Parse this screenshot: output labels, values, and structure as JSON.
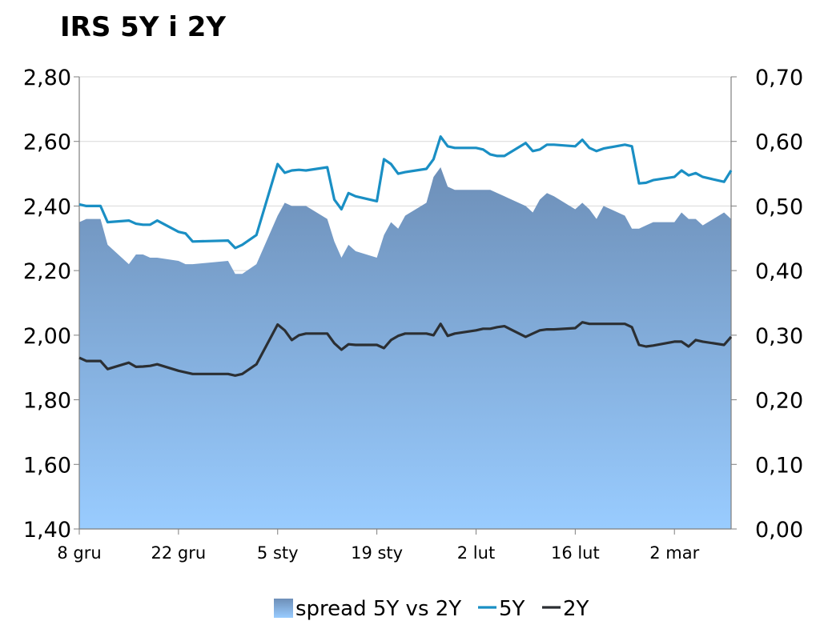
{
  "chart_data": {
    "type": "line",
    "title": "IRS 5Y i 2Y",
    "x_tick_labels": [
      "8 gru",
      "22 gru",
      "5 sty",
      "19 sty",
      "2 lut",
      "16 lut",
      "2 mar"
    ],
    "x": [
      "2008-12-08",
      "2008-12-09",
      "2008-12-10",
      "2008-12-11",
      "2008-12-12",
      "2008-12-15",
      "2008-12-16",
      "2008-12-17",
      "2008-12-18",
      "2008-12-19",
      "2008-12-22",
      "2008-12-23",
      "2008-12-24",
      "2008-12-29",
      "2008-12-30",
      "2008-12-31",
      "2009-01-02",
      "2009-01-05",
      "2009-01-06",
      "2009-01-07",
      "2009-01-08",
      "2009-01-09",
      "2009-01-12",
      "2009-01-13",
      "2009-01-14",
      "2009-01-15",
      "2009-01-16",
      "2009-01-19",
      "2009-01-20",
      "2009-01-21",
      "2009-01-22",
      "2009-01-23",
      "2009-01-26",
      "2009-01-27",
      "2009-01-28",
      "2009-01-29",
      "2009-01-30",
      "2009-02-02",
      "2009-02-03",
      "2009-02-04",
      "2009-02-05",
      "2009-02-06",
      "2009-02-09",
      "2009-02-10",
      "2009-02-11",
      "2009-02-12",
      "2009-02-13",
      "2009-02-16",
      "2009-02-17",
      "2009-02-18",
      "2009-02-19",
      "2009-02-20",
      "2009-02-23",
      "2009-02-24",
      "2009-02-25",
      "2009-02-26",
      "2009-02-27",
      "2009-03-02",
      "2009-03-03",
      "2009-03-04",
      "2009-03-05",
      "2009-03-06",
      "2009-03-09",
      "2009-03-10"
    ],
    "series": [
      {
        "name": "spread 5Y vs 2Y",
        "axis": "right",
        "type": "area",
        "values": [
          0.475,
          0.48,
          0.48,
          0.48,
          0.44,
          0.41,
          0.425,
          0.425,
          0.42,
          0.42,
          0.415,
          0.41,
          0.41,
          0.415,
          0.395,
          0.395,
          0.41,
          0.485,
          0.505,
          0.5,
          0.5,
          0.5,
          0.48,
          0.445,
          0.42,
          0.44,
          0.43,
          0.42,
          0.455,
          0.475,
          0.465,
          0.485,
          0.505,
          0.545,
          0.56,
          0.53,
          0.525,
          0.525,
          0.525,
          0.525,
          0.52,
          0.515,
          0.5,
          0.49,
          0.51,
          0.52,
          0.515,
          0.495,
          0.505,
          0.495,
          0.48,
          0.5,
          0.485,
          0.465,
          0.465,
          0.47,
          0.475,
          0.475,
          0.49,
          0.48,
          0.48,
          0.47,
          0.49,
          0.48
        ]
      },
      {
        "name": "5Y",
        "axis": "left",
        "type": "line",
        "values": [
          2.405,
          2.4,
          2.4,
          2.4,
          2.35,
          2.355,
          2.345,
          2.342,
          2.342,
          2.355,
          2.32,
          2.315,
          2.29,
          2.293,
          2.27,
          2.28,
          2.31,
          2.53,
          2.503,
          2.51,
          2.512,
          2.51,
          2.52,
          2.42,
          2.39,
          2.44,
          2.43,
          2.415,
          2.545,
          2.53,
          2.5,
          2.505,
          2.515,
          2.545,
          2.615,
          2.585,
          2.58,
          2.58,
          2.575,
          2.56,
          2.555,
          2.555,
          2.595,
          2.57,
          2.575,
          2.59,
          2.59,
          2.585,
          2.605,
          2.58,
          2.57,
          2.578,
          2.59,
          2.585,
          2.47,
          2.472,
          2.48,
          2.49,
          2.51,
          2.495,
          2.502,
          2.49,
          2.475,
          2.51
        ]
      },
      {
        "name": "2Y",
        "axis": "left",
        "type": "line",
        "values": [
          1.93,
          1.92,
          1.92,
          1.92,
          1.895,
          1.915,
          1.902,
          1.903,
          1.905,
          1.91,
          1.89,
          1.885,
          1.88,
          1.88,
          1.875,
          1.88,
          1.91,
          2.033,
          2.015,
          1.985,
          2.0,
          2.005,
          2.005,
          1.975,
          1.955,
          1.972,
          1.97,
          1.97,
          1.96,
          1.985,
          1.998,
          2.005,
          2.005,
          2.0,
          2.035,
          1.998,
          2.005,
          2.015,
          2.02,
          2.02,
          2.025,
          2.028,
          1.995,
          2.005,
          2.015,
          2.018,
          2.018,
          2.022,
          2.04,
          2.035,
          2.035,
          2.035,
          2.035,
          2.025,
          1.97,
          1.965,
          1.968,
          1.98,
          1.98,
          1.965,
          1.985,
          1.98,
          1.97,
          1.995
        ]
      }
    ],
    "y_left": {
      "min": 1.4,
      "max": 2.8,
      "step": 0.2,
      "tick_labels": [
        "1,40",
        "1,60",
        "1,80",
        "2,00",
        "2,20",
        "2,40",
        "2,60",
        "2,80"
      ]
    },
    "y_right": {
      "min": 0.0,
      "max": 0.7,
      "step": 0.1,
      "tick_labels": [
        "0,00",
        "0,10",
        "0,20",
        "0,30",
        "0,40",
        "0,50",
        "0,60",
        "0,70"
      ]
    },
    "grid": true,
    "legend": {
      "position": "bottom-center",
      "entries": [
        "spread 5Y vs 2Y",
        "5Y",
        "2Y"
      ]
    },
    "colors": {
      "area_top": "#6d8fb8",
      "area_bottom": "#99ccff",
      "line_5y": "#1a8fc4",
      "line_2y": "#2b2f33",
      "grid": "#d9d9d9",
      "axis": "#7f7f7f"
    }
  }
}
